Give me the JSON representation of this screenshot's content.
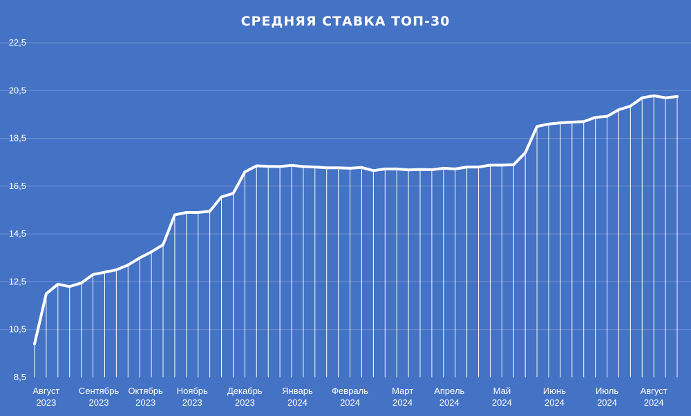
{
  "colors": {
    "background": "#4472c4",
    "line": "#ffffff",
    "gridline": "#6f93d3",
    "text": "#ffffff"
  },
  "chart_data": {
    "type": "line",
    "title": "СРЕДНЯЯ СТАВКА ТОП-30",
    "xlabel": "",
    "ylabel": "",
    "ylim": [
      8.5,
      22.5
    ],
    "yticks": [
      "8,5",
      "10,5",
      "12,5",
      "14,5",
      "16,5",
      "18,5",
      "20,5",
      "22,5"
    ],
    "grid": true,
    "drop_lines": true,
    "month_labels": [
      {
        "month": "Август",
        "year": "2023",
        "index": 1
      },
      {
        "month": "Сентябрь",
        "year": "2023",
        "index": 5.5
      },
      {
        "month": "Октябрь",
        "year": "2023",
        "index": 9.5
      },
      {
        "month": "Ноябрь",
        "year": "2023",
        "index": 13.5
      },
      {
        "month": "Декабрь",
        "year": "2023",
        "index": 18
      },
      {
        "month": "Январь",
        "year": "2024",
        "index": 22.5
      },
      {
        "month": "Февраль",
        "year": "2024",
        "index": 27
      },
      {
        "month": "Март",
        "year": "2024",
        "index": 31.5
      },
      {
        "month": "Апрель",
        "year": "2024",
        "index": 35.5
      },
      {
        "month": "Май",
        "year": "2024",
        "index": 40
      },
      {
        "month": "Июнь",
        "year": "2024",
        "index": 44.5
      },
      {
        "month": "Июль",
        "year": "2024",
        "index": 49
      },
      {
        "month": "Август",
        "year": "2024",
        "index": 53
      }
    ],
    "series": [
      {
        "values": [
          9.9,
          12.0,
          12.4,
          12.3,
          12.45,
          12.8,
          12.9,
          13.0,
          13.2,
          13.5,
          13.75,
          14.05,
          15.3,
          15.4,
          15.4,
          15.45,
          16.05,
          16.2,
          17.1,
          17.35,
          17.33,
          17.32,
          17.37,
          17.32,
          17.3,
          17.27,
          17.27,
          17.25,
          17.28,
          17.15,
          17.22,
          17.22,
          17.18,
          17.2,
          17.19,
          17.25,
          17.22,
          17.3,
          17.3,
          17.38,
          17.38,
          17.4,
          17.9,
          19.0,
          19.1,
          19.15,
          19.18,
          19.2,
          19.38,
          19.42,
          19.7,
          19.85,
          20.2,
          20.28,
          20.2,
          20.25
        ]
      }
    ]
  }
}
